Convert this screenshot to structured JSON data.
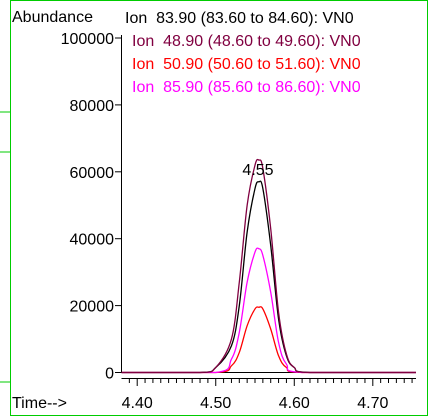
{
  "chart_data": {
    "type": "line",
    "ylabel": "Abundance",
    "xlabel": "Time-->",
    "xlim": [
      4.38,
      4.755
    ],
    "ylim": [
      0,
      100000
    ],
    "x_ticks": [
      4.4,
      4.5,
      4.6,
      4.7
    ],
    "x_tick_labels": [
      "4.40",
      "4.50",
      "4.60",
      "4.70"
    ],
    "y_ticks": [
      0,
      20000,
      40000,
      60000,
      80000,
      100000
    ],
    "y_tick_labels": [
      "0",
      "20000",
      "40000",
      "60000",
      "80000",
      "100000"
    ],
    "annotations": [
      {
        "text": "4.55",
        "x": 4.555,
        "y": 60500
      }
    ],
    "legend_position": "top",
    "series": [
      {
        "name": "Ion  83.90 (83.60 to 84.60): VN0",
        "color": "#000000",
        "x": [
          4.38,
          4.48,
          4.5,
          4.52,
          4.53,
          4.54,
          4.55,
          4.555,
          4.56,
          4.57,
          4.58,
          4.59,
          4.6,
          4.62,
          4.755
        ],
        "y": [
          0,
          0,
          1500,
          8000,
          20000,
          42000,
          55000,
          57000,
          55000,
          38000,
          16000,
          5000,
          1500,
          0,
          0
        ]
      },
      {
        "name": "Ion  48.90 (48.60 to 49.60): VN0",
        "color": "#800040",
        "x": [
          4.38,
          4.48,
          4.5,
          4.52,
          4.53,
          4.54,
          4.55,
          4.555,
          4.56,
          4.57,
          4.58,
          4.59,
          4.6,
          4.62,
          4.755
        ],
        "y": [
          0,
          0,
          1500,
          10000,
          27000,
          50000,
          62000,
          63500,
          61000,
          43000,
          18000,
          5500,
          1500,
          0,
          0
        ]
      },
      {
        "name": "Ion  50.90 (50.60 to 51.60): VN0",
        "color": "#ff0000",
        "x": [
          4.38,
          4.5,
          4.52,
          4.53,
          4.54,
          4.55,
          4.555,
          4.56,
          4.57,
          4.58,
          4.59,
          4.61,
          4.755
        ],
        "y": [
          0,
          0,
          2000,
          6000,
          14000,
          19000,
          19500,
          19000,
          13000,
          5000,
          1500,
          0,
          0
        ]
      },
      {
        "name": "Ion  85.90 (85.60 to 86.60): VN0",
        "color": "#ff00ff",
        "x": [
          4.38,
          4.5,
          4.52,
          4.53,
          4.54,
          4.55,
          4.555,
          4.56,
          4.57,
          4.58,
          4.59,
          4.61,
          4.755
        ],
        "y": [
          0,
          0,
          4000,
          12000,
          27000,
          36000,
          37000,
          35000,
          24000,
          9000,
          2500,
          0,
          0
        ]
      }
    ]
  }
}
